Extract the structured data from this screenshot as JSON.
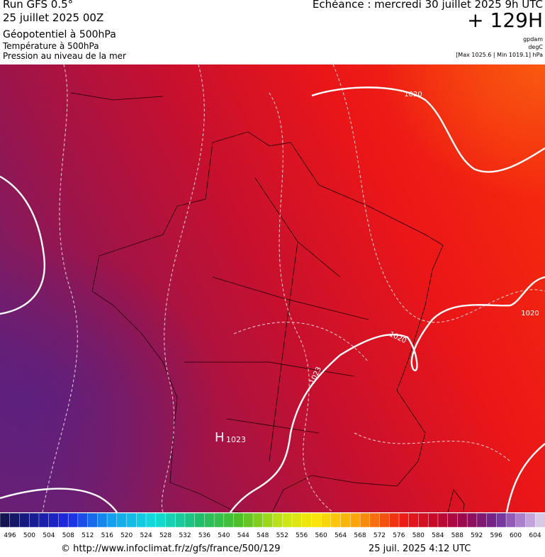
{
  "header": {
    "left": [
      "Run GFS 0.5°",
      "25 juillet 2025 00Z",
      "Géopotentiel à 500hPa",
      "Température à 500hPa",
      "Pression au niveau de la mer"
    ],
    "echeance": "Echéance : mercredi 30 juillet 2025 9h UTC",
    "lead": "+ 129H",
    "units": [
      "gpdam",
      "degC"
    ],
    "range": "[Max 1025.6 | Min 1019.1] hPa"
  },
  "map": {
    "isobar_labels": [
      "1020",
      "1020",
      "1020",
      "1023"
    ],
    "high": {
      "symbol": "H",
      "value": "1023"
    }
  },
  "colorbar": {
    "ticks": [
      496,
      500,
      504,
      508,
      512,
      516,
      520,
      524,
      528,
      532,
      536,
      540,
      544,
      548,
      552,
      556,
      560,
      564,
      568,
      572,
      576,
      580,
      584,
      588,
      592,
      596,
      600,
      604
    ]
  },
  "footer": {
    "source": "© http://www.infoclimat.fr/z/gfs/france/500/129",
    "date": "25 juil. 2025  4:12 UTC"
  }
}
